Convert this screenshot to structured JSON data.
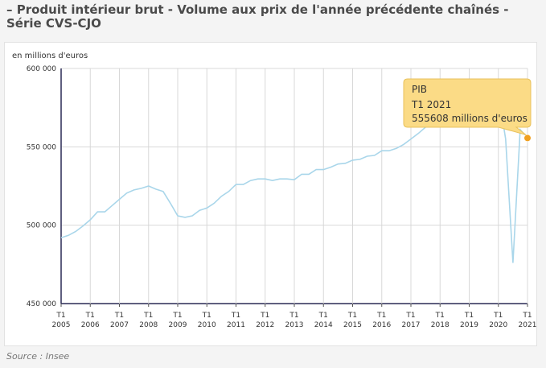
{
  "header": {
    "title": "– Produit intérieur brut - Volume aux prix de l'année précédente chaînés - Série CVS-CJO"
  },
  "footer": {
    "source": "Source : Insee"
  },
  "chart_data": {
    "type": "line",
    "title": "",
    "unit_label": "en millions d'euros",
    "xlabel": "",
    "ylabel": "",
    "ylim": [
      450000,
      600000
    ],
    "y_ticks": [
      {
        "value": 450000,
        "label": "450 000"
      },
      {
        "value": 500000,
        "label": "500 000"
      },
      {
        "value": 550000,
        "label": "550 000"
      },
      {
        "value": 600000,
        "label": "600 000"
      }
    ],
    "x_ticks": [
      {
        "q": "T1",
        "year": "2005"
      },
      {
        "q": "T1",
        "year": "2006"
      },
      {
        "q": "T1",
        "year": "2007"
      },
      {
        "q": "T1",
        "year": "2008"
      },
      {
        "q": "T1",
        "year": "2009"
      },
      {
        "q": "T1",
        "year": "2010"
      },
      {
        "q": "T1",
        "year": "2011"
      },
      {
        "q": "T1",
        "year": "2012"
      },
      {
        "q": "T1",
        "year": "2013"
      },
      {
        "q": "T1",
        "year": "2014"
      },
      {
        "q": "T1",
        "year": "2015"
      },
      {
        "q": "T1",
        "year": "2016"
      },
      {
        "q": "T1",
        "year": "2017"
      },
      {
        "q": "T1",
        "year": "2018"
      },
      {
        "q": "T1",
        "year": "2019"
      },
      {
        "q": "T1",
        "year": "2020"
      },
      {
        "q": "T1",
        "year": "2021"
      }
    ],
    "grid": true,
    "series": [
      {
        "name": "PIB",
        "color": "#a9d6ea",
        "values": [
          492000,
          493500,
          496000,
          499500,
          503500,
          508500,
          508500,
          512500,
          516500,
          520500,
          522500,
          523500,
          525000,
          523000,
          521500,
          514000,
          506000,
          505000,
          506000,
          509500,
          511000,
          514000,
          518500,
          521500,
          526000,
          526000,
          528500,
          529500,
          529500,
          528500,
          529500,
          529500,
          529000,
          532500,
          532500,
          535500,
          535500,
          537000,
          539000,
          539500,
          541500,
          542000,
          544000,
          544500,
          547500,
          547500,
          549000,
          551500,
          555000,
          558500,
          562500,
          564500,
          567500,
          570000,
          572000,
          573500,
          576000,
          578500,
          581000,
          582500,
          584000,
          555000,
          476000,
          561000,
          555608
        ]
      }
    ],
    "tooltip": {
      "series_name": "PIB",
      "period": "T1 2021",
      "value_text": "555608 millions d'euros"
    },
    "highlight_color": "#f0a020"
  }
}
